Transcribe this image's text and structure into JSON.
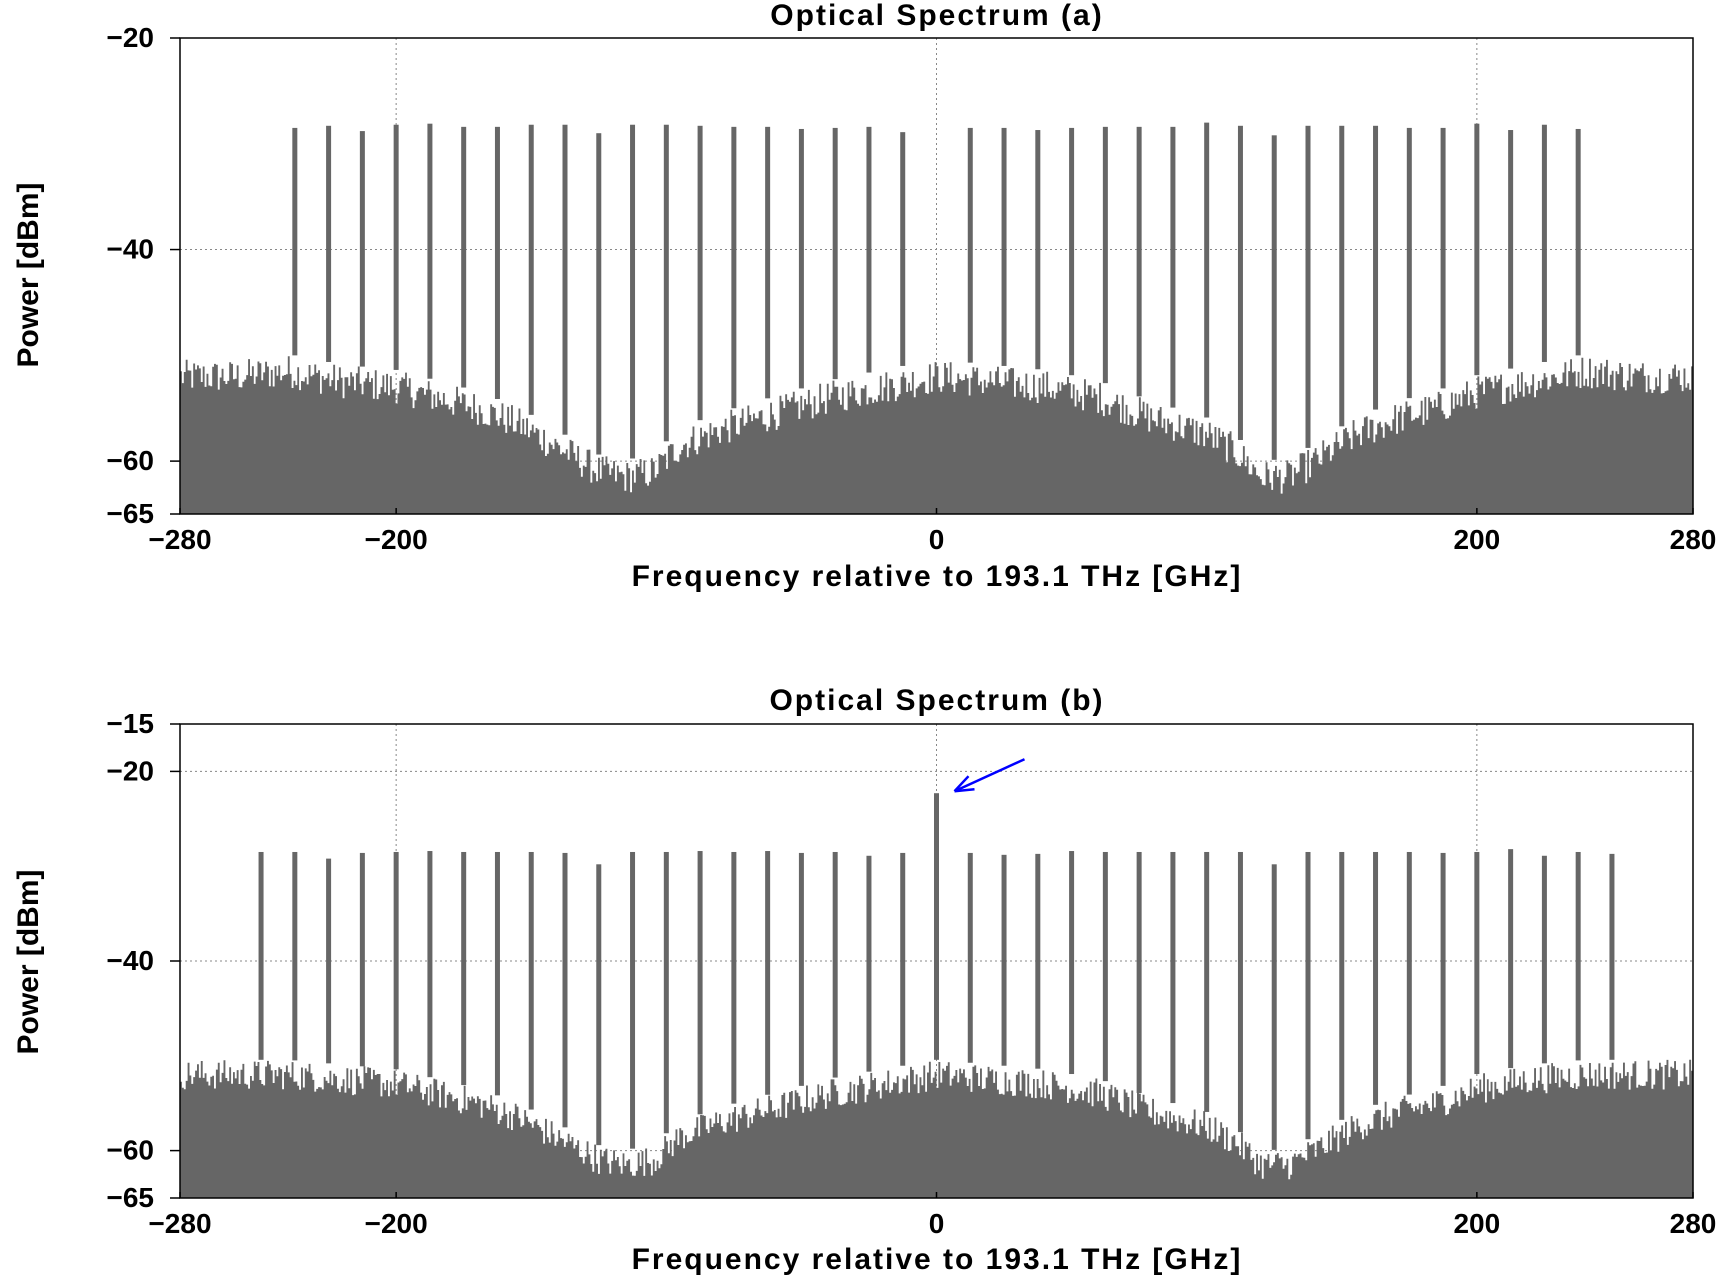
{
  "chart_data": [
    {
      "type": "line",
      "title": "Optical Spectrum (a)",
      "xlabel": "Frequency relative to 193.1 THz [GHz]",
      "ylabel": "Power [dBm]",
      "xlim": [
        -280,
        280
      ],
      "ylim": [
        -65,
        -20
      ],
      "xticks": [
        -280,
        -200,
        0,
        200,
        280
      ],
      "yticks": [
        -20,
        -40,
        -60,
        -65
      ],
      "grid": true,
      "color": "#666666",
      "series": [
        {
          "label": "carrier lines",
          "x": [
            -237.5,
            -225,
            -212.5,
            -200,
            -187.5,
            -175,
            -162.5,
            -150,
            -137.5,
            -125,
            -112.5,
            -100,
            -87.5,
            -75,
            -62.5,
            -50,
            -37.5,
            -25,
            -12.5,
            12.5,
            25,
            37.5,
            50,
            62.5,
            75,
            87.5,
            100,
            112.5,
            125,
            137.5,
            150,
            162.5,
            175,
            187.5,
            200,
            212.5,
            225,
            237.5
          ],
          "y": [
            -28.5,
            -28.3,
            -28.8,
            -28.2,
            -28.1,
            -28.4,
            -28.4,
            -28.2,
            -28.2,
            -29.0,
            -28.2,
            -28.2,
            -28.3,
            -28.4,
            -28.4,
            -28.6,
            -28.5,
            -28.4,
            -28.9,
            -28.5,
            -28.5,
            -28.7,
            -28.5,
            -28.4,
            -28.4,
            -28.4,
            -28.0,
            -28.3,
            -29.2,
            -28.3,
            -28.3,
            -28.3,
            -28.5,
            -28.5,
            -28.1,
            -28.7,
            -28.2,
            -28.6
          ]
        },
        {
          "label": "noise floor",
          "x": [
            -280,
            -260,
            -240,
            -220,
            -200,
            -185,
            -170,
            -155,
            -145,
            -135,
            -125,
            -115,
            -105,
            -95,
            -80,
            -60,
            -40,
            -20,
            0,
            20,
            40,
            60,
            80,
            100,
            110,
            120,
            130,
            140,
            155,
            170,
            185,
            200,
            220,
            240,
            260,
            280
          ],
          "y": [
            -52,
            -52,
            -51.5,
            -52.5,
            -53,
            -54,
            -55,
            -56.5,
            -58,
            -59.5,
            -61,
            -61.5,
            -61,
            -58.5,
            -57,
            -55.5,
            -54,
            -53,
            -52,
            -52.5,
            -53,
            -54,
            -56,
            -57.5,
            -59,
            -61.5,
            -61.5,
            -60,
            -57.5,
            -56,
            -55,
            -53.5,
            -52.5,
            -51.5,
            -52,
            -52
          ]
        }
      ]
    },
    {
      "type": "line",
      "title": "Optical Spectrum (b)",
      "xlabel": "Frequency relative to 193.1 THz [GHz]",
      "ylabel": "Power [dBm]",
      "xlim": [
        -280,
        280
      ],
      "ylim": [
        -65,
        -15
      ],
      "xticks": [
        -280,
        -200,
        0,
        200,
        280
      ],
      "yticks": [
        -15,
        -20,
        -40,
        -60,
        -65
      ],
      "grid": true,
      "color": "#666666",
      "annotation": {
        "type": "arrow",
        "color": "#0000ff",
        "x": 0,
        "y": -22.3
      },
      "series": [
        {
          "label": "carrier lines",
          "x": [
            -250,
            -237.5,
            -225,
            -212.5,
            -200,
            -187.5,
            -175,
            -162.5,
            -150,
            -137.5,
            -125,
            -112.5,
            -100,
            -87.5,
            -75,
            -62.5,
            -50,
            -37.5,
            -25,
            -12.5,
            0,
            12.5,
            25,
            37.5,
            50,
            62.5,
            75,
            87.5,
            100,
            112.5,
            125,
            137.5,
            150,
            162.5,
            175,
            187.5,
            200,
            212.5,
            225,
            237.5,
            250
          ],
          "y": [
            -28.5,
            -28.5,
            -29.2,
            -28.6,
            -28.5,
            -28.4,
            -28.5,
            -28.5,
            -28.5,
            -28.6,
            -29.8,
            -28.5,
            -28.5,
            -28.4,
            -28.5,
            -28.4,
            -28.6,
            -28.5,
            -28.9,
            -28.6,
            -22.3,
            -28.6,
            -28.8,
            -28.7,
            -28.4,
            -28.5,
            -28.5,
            -28.5,
            -28.5,
            -28.5,
            -29.8,
            -28.5,
            -28.5,
            -28.5,
            -28.5,
            -28.6,
            -28.5,
            -28.2,
            -28.9,
            -28.5,
            -28.7
          ]
        },
        {
          "label": "noise floor",
          "x": [
            -280,
            -260,
            -240,
            -220,
            -200,
            -185,
            -170,
            -155,
            -145,
            -135,
            -125,
            -115,
            -105,
            -95,
            -80,
            -60,
            -40,
            -20,
            0,
            20,
            40,
            60,
            80,
            100,
            110,
            120,
            130,
            140,
            155,
            170,
            185,
            200,
            220,
            240,
            260,
            280
          ],
          "y": [
            -52,
            -52,
            -52,
            -52.5,
            -53,
            -54,
            -55,
            -56.5,
            -58,
            -59.5,
            -61,
            -61.5,
            -61,
            -58.5,
            -57,
            -55.5,
            -54,
            -53,
            -52,
            -52.5,
            -53,
            -54,
            -56,
            -57.5,
            -59,
            -61.5,
            -61.5,
            -60,
            -57.5,
            -56,
            -55,
            -53.5,
            -52.5,
            -52,
            -52,
            -52
          ]
        }
      ]
    }
  ]
}
